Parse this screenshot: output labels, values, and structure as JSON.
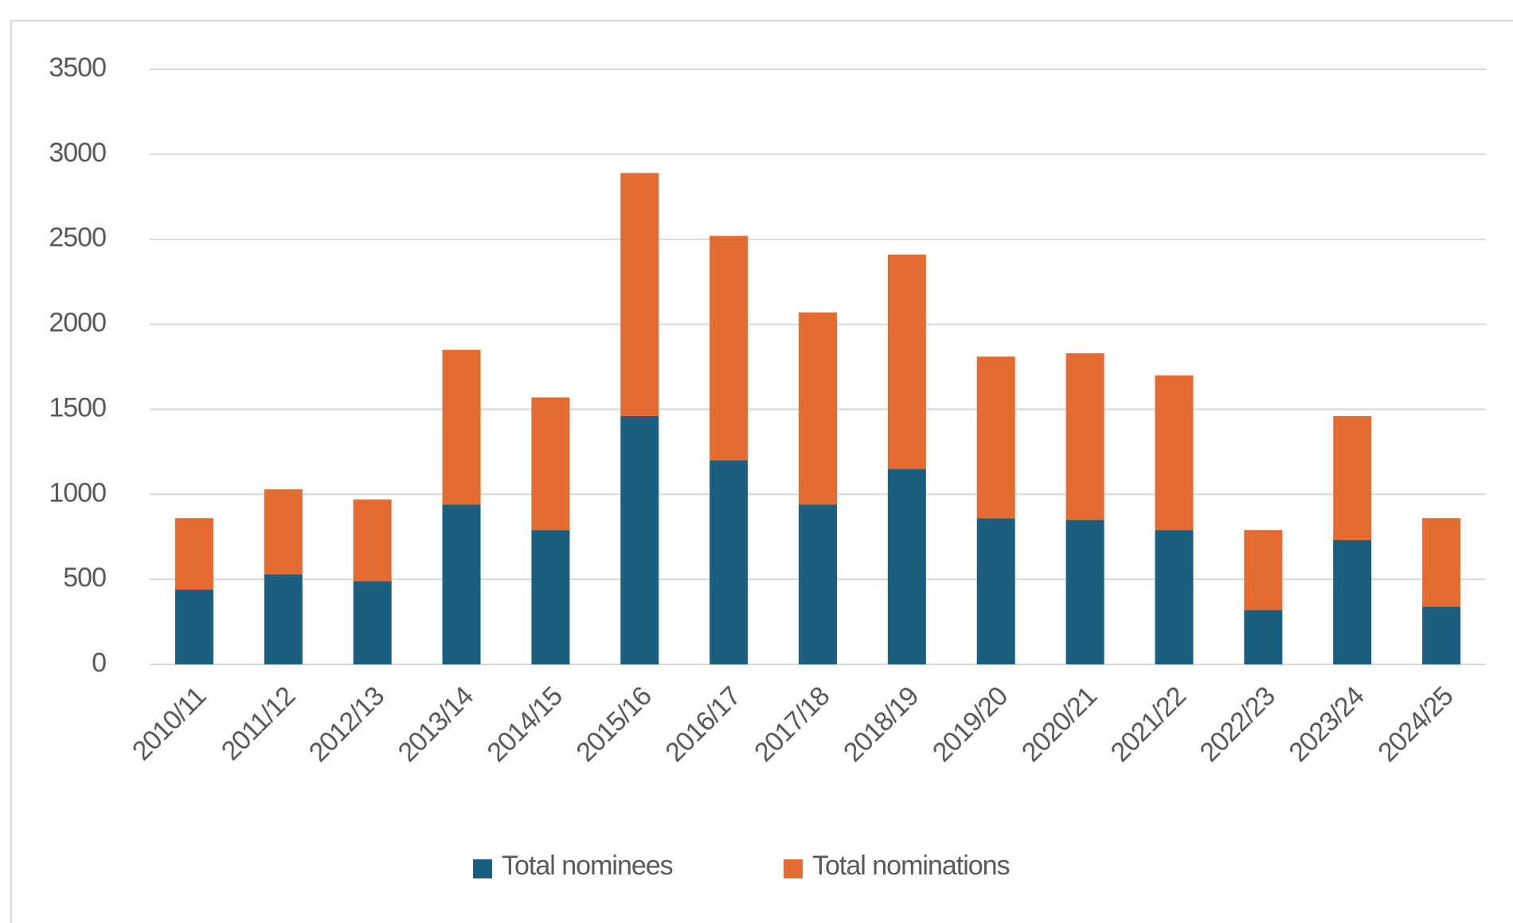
{
  "chart_data": {
    "type": "stacked-bar",
    "categories": [
      "2010/11",
      "2011/12",
      "2012/13",
      "2013/14",
      "2014/15",
      "2015/16",
      "2016/17",
      "2017/18",
      "2018/19",
      "2019/20",
      "2020/21",
      "2021/22",
      "2022/23",
      "2023/24",
      "2024/25"
    ],
    "series": [
      {
        "name": "Total nominees",
        "color": "#1a5f80",
        "values": [
          440,
          530,
          490,
          940,
          790,
          1460,
          1200,
          940,
          1150,
          860,
          850,
          790,
          320,
          730,
          340
        ]
      },
      {
        "name": "Total nominations",
        "color": "#e46c32",
        "values": [
          420,
          500,
          480,
          910,
          780,
          1430,
          1320,
          1130,
          1260,
          950,
          980,
          910,
          470,
          730,
          520
        ]
      }
    ],
    "ylim": [
      0,
      3500
    ],
    "yticks": [
      0,
      500,
      1000,
      1500,
      2000,
      2500,
      3000,
      3500
    ],
    "grid": true,
    "legend": "bottom"
  }
}
